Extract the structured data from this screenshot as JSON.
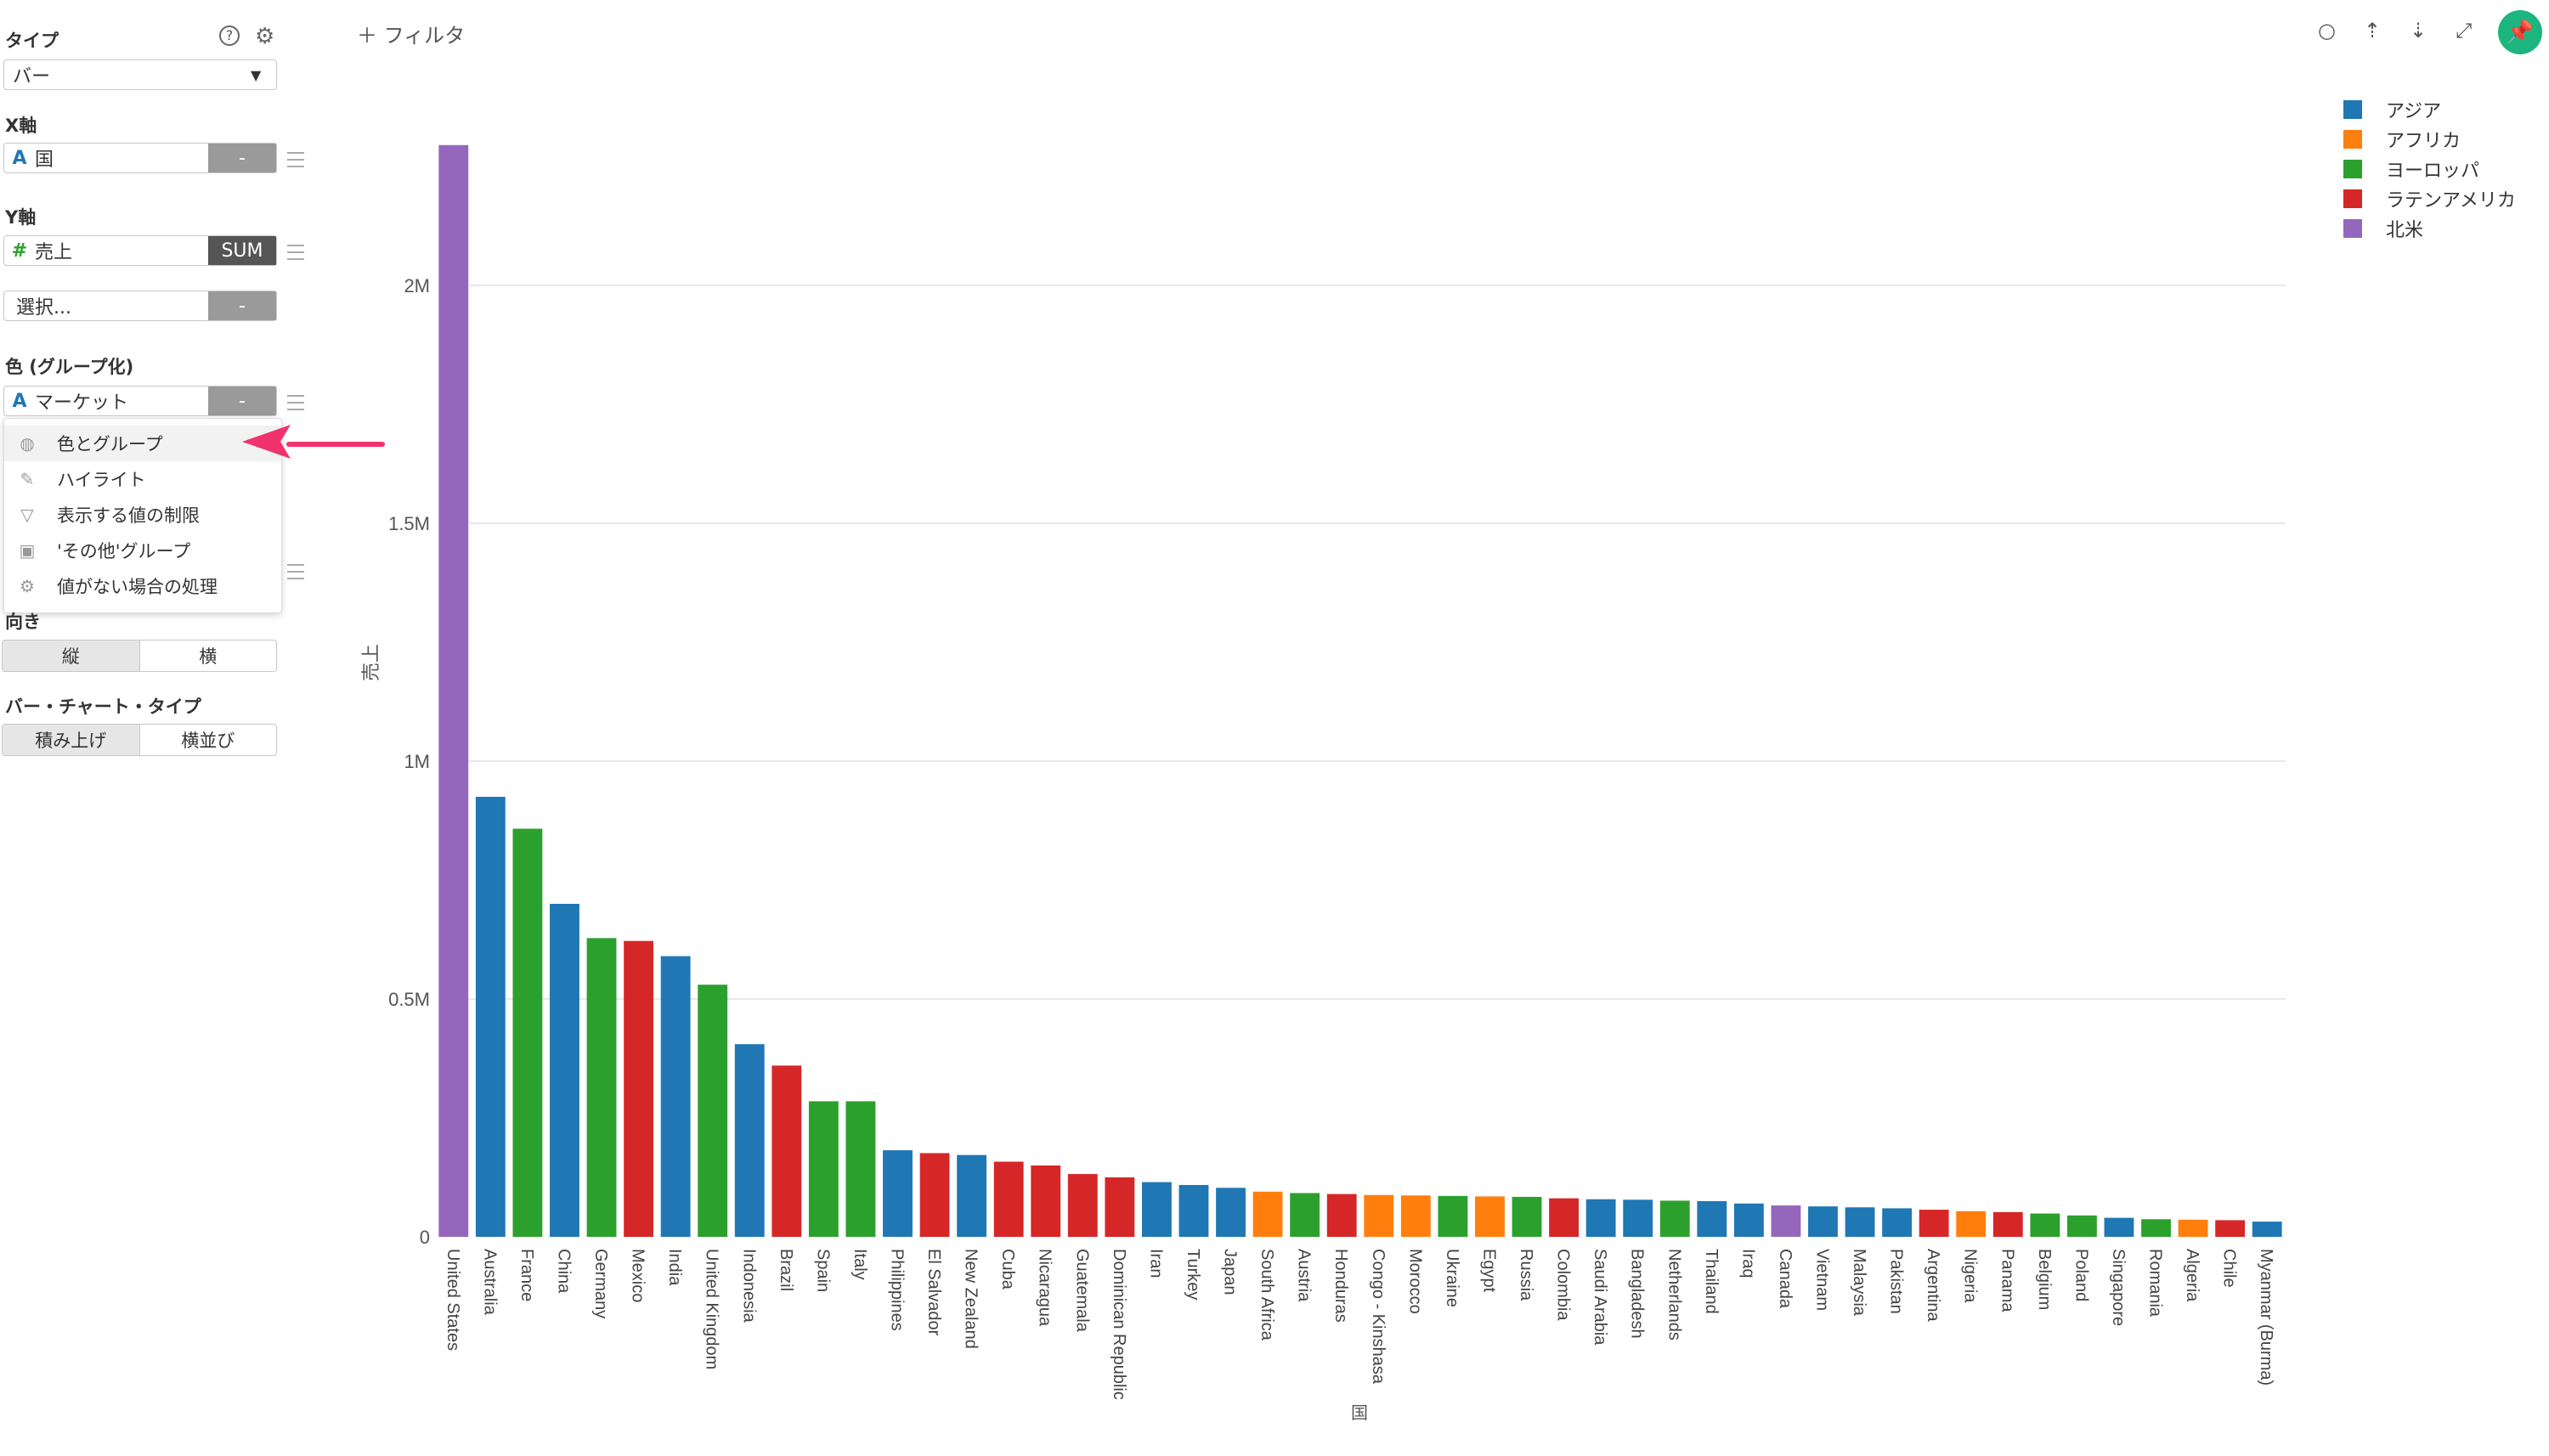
{
  "sidebar": {
    "type_label": "タイプ",
    "type_value": "バー",
    "x_axis_label": "X軸",
    "x_field": {
      "type": "A",
      "name": "国",
      "btn": "-"
    },
    "y_axis_label": "Y軸",
    "y_field": {
      "type": "#",
      "name": "売上",
      "btn": "SUM"
    },
    "y_field2": {
      "name": "選択...",
      "btn": "-"
    },
    "color_label": "色 (グループ化)",
    "color_field": {
      "type": "A",
      "name": "マーケット",
      "btn": "-"
    },
    "orientation_label": "向き",
    "orientation": [
      "縦",
      "横"
    ],
    "bar_type_label": "バー・チャート・タイプ",
    "bar_type": [
      "積み上げ",
      "横並び"
    ]
  },
  "menu": {
    "items": [
      {
        "label": "色とグループ",
        "icon": "palette-icon"
      },
      {
        "label": "ハイライト",
        "icon": "pencil-icon"
      },
      {
        "label": "表示する値の制限",
        "icon": "filter-icon"
      },
      {
        "label": "'その他'グループ",
        "icon": "image-icon"
      },
      {
        "label": "値がない場合の処理",
        "icon": "gear-icon"
      }
    ]
  },
  "toolbar": {
    "filter_label": "フィルタ"
  },
  "colors": {
    "asia": "#1f77b4",
    "africa": "#ff7f0e",
    "europe": "#2ca02c",
    "latam": "#d62728",
    "namerica": "#9467bd",
    "pin_button": "#1db57f",
    "arrow": "#f0336e"
  },
  "chart_data": {
    "type": "bar",
    "xlabel": "国",
    "ylabel": "売上",
    "ylim": [
      0,
      2300000
    ],
    "y_ticks": [
      {
        "value": 0,
        "label": "0"
      },
      {
        "value": 500000,
        "label": "0.5M"
      },
      {
        "value": 1000000,
        "label": "1M"
      },
      {
        "value": 1500000,
        "label": "1.5M"
      },
      {
        "value": 2000000,
        "label": "2M"
      }
    ],
    "legend": [
      {
        "name": "アジア",
        "key": "asia"
      },
      {
        "name": "アフリカ",
        "key": "africa"
      },
      {
        "name": "ヨーロッパ",
        "key": "europe"
      },
      {
        "name": "ラテンアメリカ",
        "key": "latam"
      },
      {
        "name": "北米",
        "key": "namerica"
      }
    ],
    "categories": [
      "United States",
      "Australia",
      "France",
      "China",
      "Germany",
      "Mexico",
      "India",
      "United Kingdom",
      "Indonesia",
      "Brazil",
      "Spain",
      "Italy",
      "Philippines",
      "El Salvador",
      "New Zealand",
      "Cuba",
      "Nicaragua",
      "Guatemala",
      "Dominican Republic",
      "Iran",
      "Turkey",
      "Japan",
      "South Africa",
      "Austria",
      "Honduras",
      "Congo - Kinshasa",
      "Morocco",
      "Ukraine",
      "Egypt",
      "Russia",
      "Colombia",
      "Saudi Arabia",
      "Bangladesh",
      "Netherlands",
      "Thailand",
      "Iraq",
      "Canada",
      "Vietnam",
      "Malaysia",
      "Pakistan",
      "Argentina",
      "Nigeria",
      "Panama",
      "Belgium",
      "Poland",
      "Singapore",
      "Romania",
      "Algeria",
      "Chile",
      "Myanmar (Burma)"
    ],
    "groups": [
      "namerica",
      "asia",
      "europe",
      "asia",
      "europe",
      "latam",
      "asia",
      "europe",
      "asia",
      "latam",
      "europe",
      "europe",
      "asia",
      "latam",
      "asia",
      "latam",
      "latam",
      "latam",
      "latam",
      "asia",
      "asia",
      "asia",
      "africa",
      "europe",
      "latam",
      "africa",
      "africa",
      "europe",
      "africa",
      "europe",
      "latam",
      "asia",
      "asia",
      "europe",
      "asia",
      "asia",
      "namerica",
      "asia",
      "asia",
      "asia",
      "latam",
      "africa",
      "latam",
      "europe",
      "europe",
      "asia",
      "europe",
      "africa",
      "latam",
      "asia"
    ],
    "values": [
      2295000,
      925000,
      858000,
      700000,
      628000,
      622000,
      590000,
      530000,
      405000,
      360000,
      285000,
      285000,
      182000,
      176000,
      172000,
      158000,
      150000,
      132000,
      125000,
      115000,
      109000,
      103000,
      95000,
      92000,
      90000,
      88000,
      87000,
      86000,
      85000,
      84000,
      81000,
      79000,
      78000,
      76000,
      75000,
      70000,
      66000,
      64000,
      62000,
      60000,
      57000,
      54000,
      52000,
      49000,
      45000,
      40000,
      37000,
      36000,
      35000,
      32000
    ],
    "grid": true
  }
}
